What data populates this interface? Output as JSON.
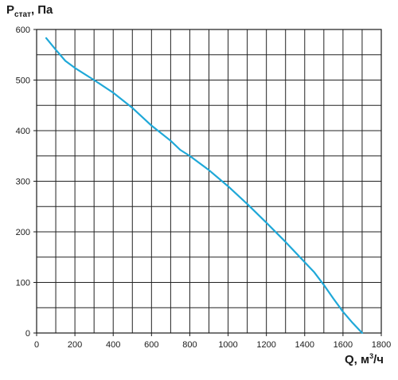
{
  "chart_data": {
    "type": "line",
    "title": "",
    "ylabel": {
      "main": "P",
      "subscript": "стат",
      "suffix": ", Па"
    },
    "xlabel": {
      "main": "Q, м",
      "superscript": "3",
      "suffix": "/ч"
    },
    "xlim": [
      0,
      1800
    ],
    "ylim": [
      0,
      600
    ],
    "xticks": [
      0,
      200,
      400,
      600,
      800,
      1000,
      1200,
      1400,
      1600,
      1800
    ],
    "yticks": [
      0,
      100,
      200,
      300,
      400,
      500,
      600
    ],
    "grid": true,
    "grid_x_step": 100,
    "grid_y_step": 50,
    "line_color": "#1fa8d8",
    "series": [
      {
        "x": [
          50,
          100,
          150,
          200,
          300,
          400,
          500,
          600,
          700,
          750,
          800,
          900,
          1000,
          1100,
          1200,
          1300,
          1400,
          1450,
          1500,
          1550,
          1600,
          1650,
          1700
        ],
        "y": [
          583,
          560,
          538,
          524,
          500,
          475,
          445,
          410,
          380,
          362,
          350,
          322,
          290,
          255,
          218,
          180,
          140,
          120,
          95,
          68,
          42,
          20,
          0
        ]
      }
    ]
  }
}
